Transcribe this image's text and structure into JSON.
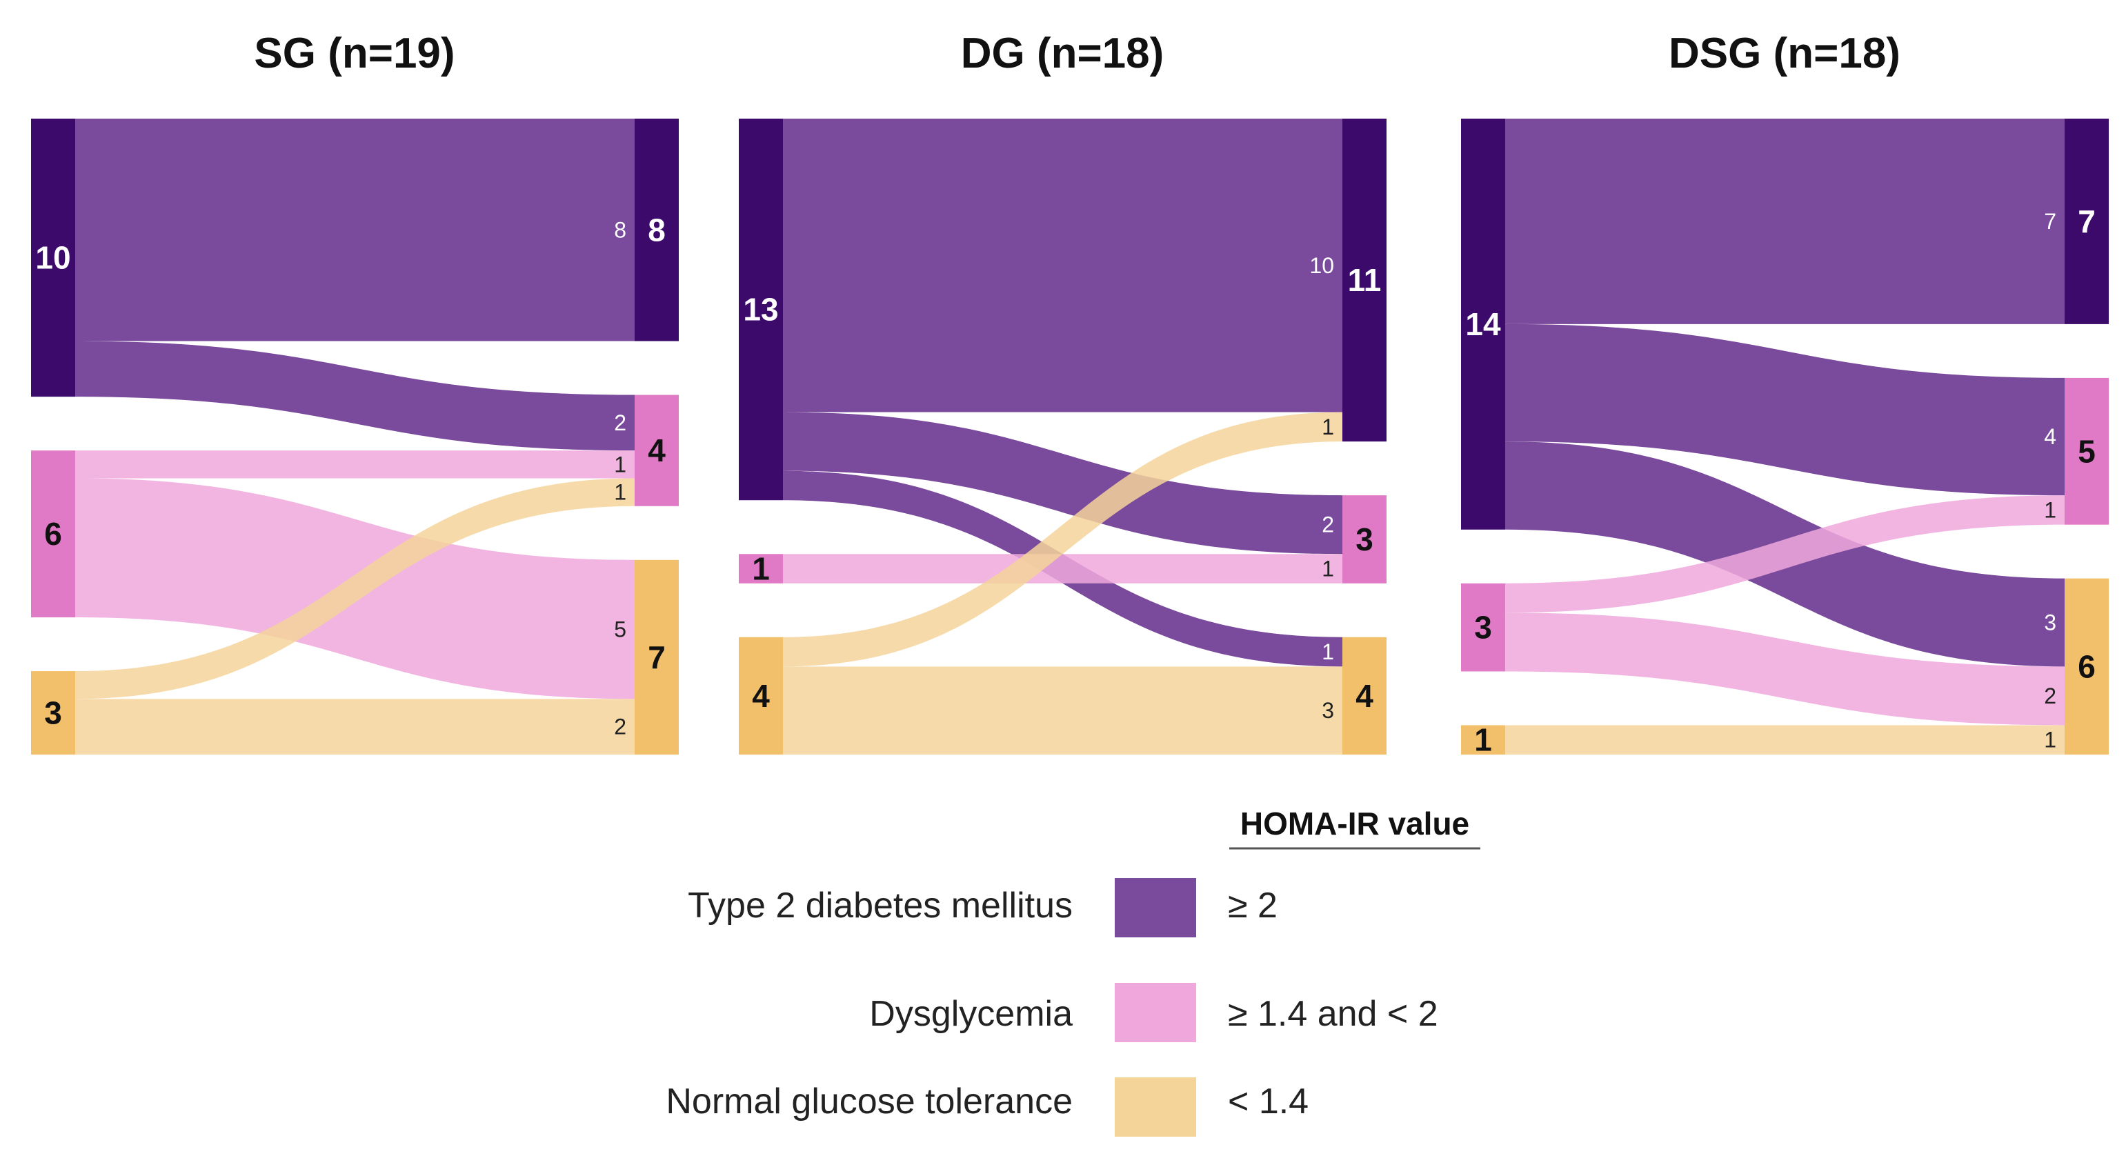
{
  "colors": {
    "t2dm_flow": "#7a4a9c",
    "t2dm_node": "#3b0a6b",
    "dys_flow": "#f0a8dc",
    "dys_node": "#e07ac6",
    "ngt_flow": "#f5d49a",
    "ngt_node": "#f2bf6a"
  },
  "chart_data": [
    {
      "type": "sankey",
      "title": "SG (n=19)",
      "left_nodes": [
        {
          "category": "t2dm",
          "value": 10,
          "label": "10"
        },
        {
          "category": "dys",
          "value": 6,
          "label": "6"
        },
        {
          "category": "ngt",
          "value": 3,
          "label": "3"
        }
      ],
      "right_nodes": [
        {
          "category": "t2dm",
          "value": 8,
          "label": "8"
        },
        {
          "category": "dys",
          "value": 4,
          "label": "4"
        },
        {
          "category": "ngt",
          "value": 7,
          "label": "7"
        }
      ],
      "flows": [
        {
          "source": 0,
          "target": 0,
          "value": 8,
          "label": "8"
        },
        {
          "source": 0,
          "target": 1,
          "value": 2,
          "label": "2"
        },
        {
          "source": 1,
          "target": 1,
          "value": 1,
          "label": "1"
        },
        {
          "source": 1,
          "target": 2,
          "value": 5,
          "label": "5"
        },
        {
          "source": 2,
          "target": 1,
          "value": 1,
          "label": "1"
        },
        {
          "source": 2,
          "target": 2,
          "value": 2,
          "label": "2"
        }
      ]
    },
    {
      "type": "sankey",
      "title": "DG (n=18)",
      "left_nodes": [
        {
          "category": "t2dm",
          "value": 13,
          "label": "13"
        },
        {
          "category": "dys",
          "value": 1,
          "label": "1"
        },
        {
          "category": "ngt",
          "value": 4,
          "label": "4"
        }
      ],
      "right_nodes": [
        {
          "category": "t2dm",
          "value": 11,
          "label": "11"
        },
        {
          "category": "dys",
          "value": 3,
          "label": "3"
        },
        {
          "category": "ngt",
          "value": 4,
          "label": "4"
        }
      ],
      "flows": [
        {
          "source": 0,
          "target": 0,
          "value": 10,
          "label": "10"
        },
        {
          "source": 0,
          "target": 1,
          "value": 2,
          "label": "2"
        },
        {
          "source": 0,
          "target": 2,
          "value": 1,
          "label": "1"
        },
        {
          "source": 1,
          "target": 1,
          "value": 1,
          "label": "1"
        },
        {
          "source": 2,
          "target": 0,
          "value": 1,
          "label": "1"
        },
        {
          "source": 2,
          "target": 2,
          "value": 3,
          "label": "3"
        }
      ]
    },
    {
      "type": "sankey",
      "title": "DSG (n=18)",
      "left_nodes": [
        {
          "category": "t2dm",
          "value": 14,
          "label": "14"
        },
        {
          "category": "dys",
          "value": 3,
          "label": "3"
        },
        {
          "category": "ngt",
          "value": 1,
          "label": "1"
        }
      ],
      "right_nodes": [
        {
          "category": "t2dm",
          "value": 7,
          "label": "7"
        },
        {
          "category": "dys",
          "value": 5,
          "label": "5"
        },
        {
          "category": "ngt",
          "value": 6,
          "label": "6"
        }
      ],
      "flows": [
        {
          "source": 0,
          "target": 0,
          "value": 7,
          "label": "7"
        },
        {
          "source": 0,
          "target": 1,
          "value": 4,
          "label": "4"
        },
        {
          "source": 0,
          "target": 2,
          "value": 3,
          "label": "3"
        },
        {
          "source": 1,
          "target": 1,
          "value": 1,
          "label": "1"
        },
        {
          "source": 1,
          "target": 2,
          "value": 2,
          "label": "2"
        },
        {
          "source": 2,
          "target": 2,
          "value": 1,
          "label": "1"
        }
      ]
    }
  ],
  "legend": {
    "heading": "HOMA-IR value",
    "items": [
      {
        "category": "t2dm",
        "label": "Type 2 diabetes mellitus",
        "value": "≥ 2"
      },
      {
        "category": "dys",
        "label": "Dysglycemia",
        "value": "≥ 1.4 and < 2"
      },
      {
        "category": "ngt",
        "label": "Normal glucose tolerance",
        "value": "< 1.4"
      }
    ]
  }
}
